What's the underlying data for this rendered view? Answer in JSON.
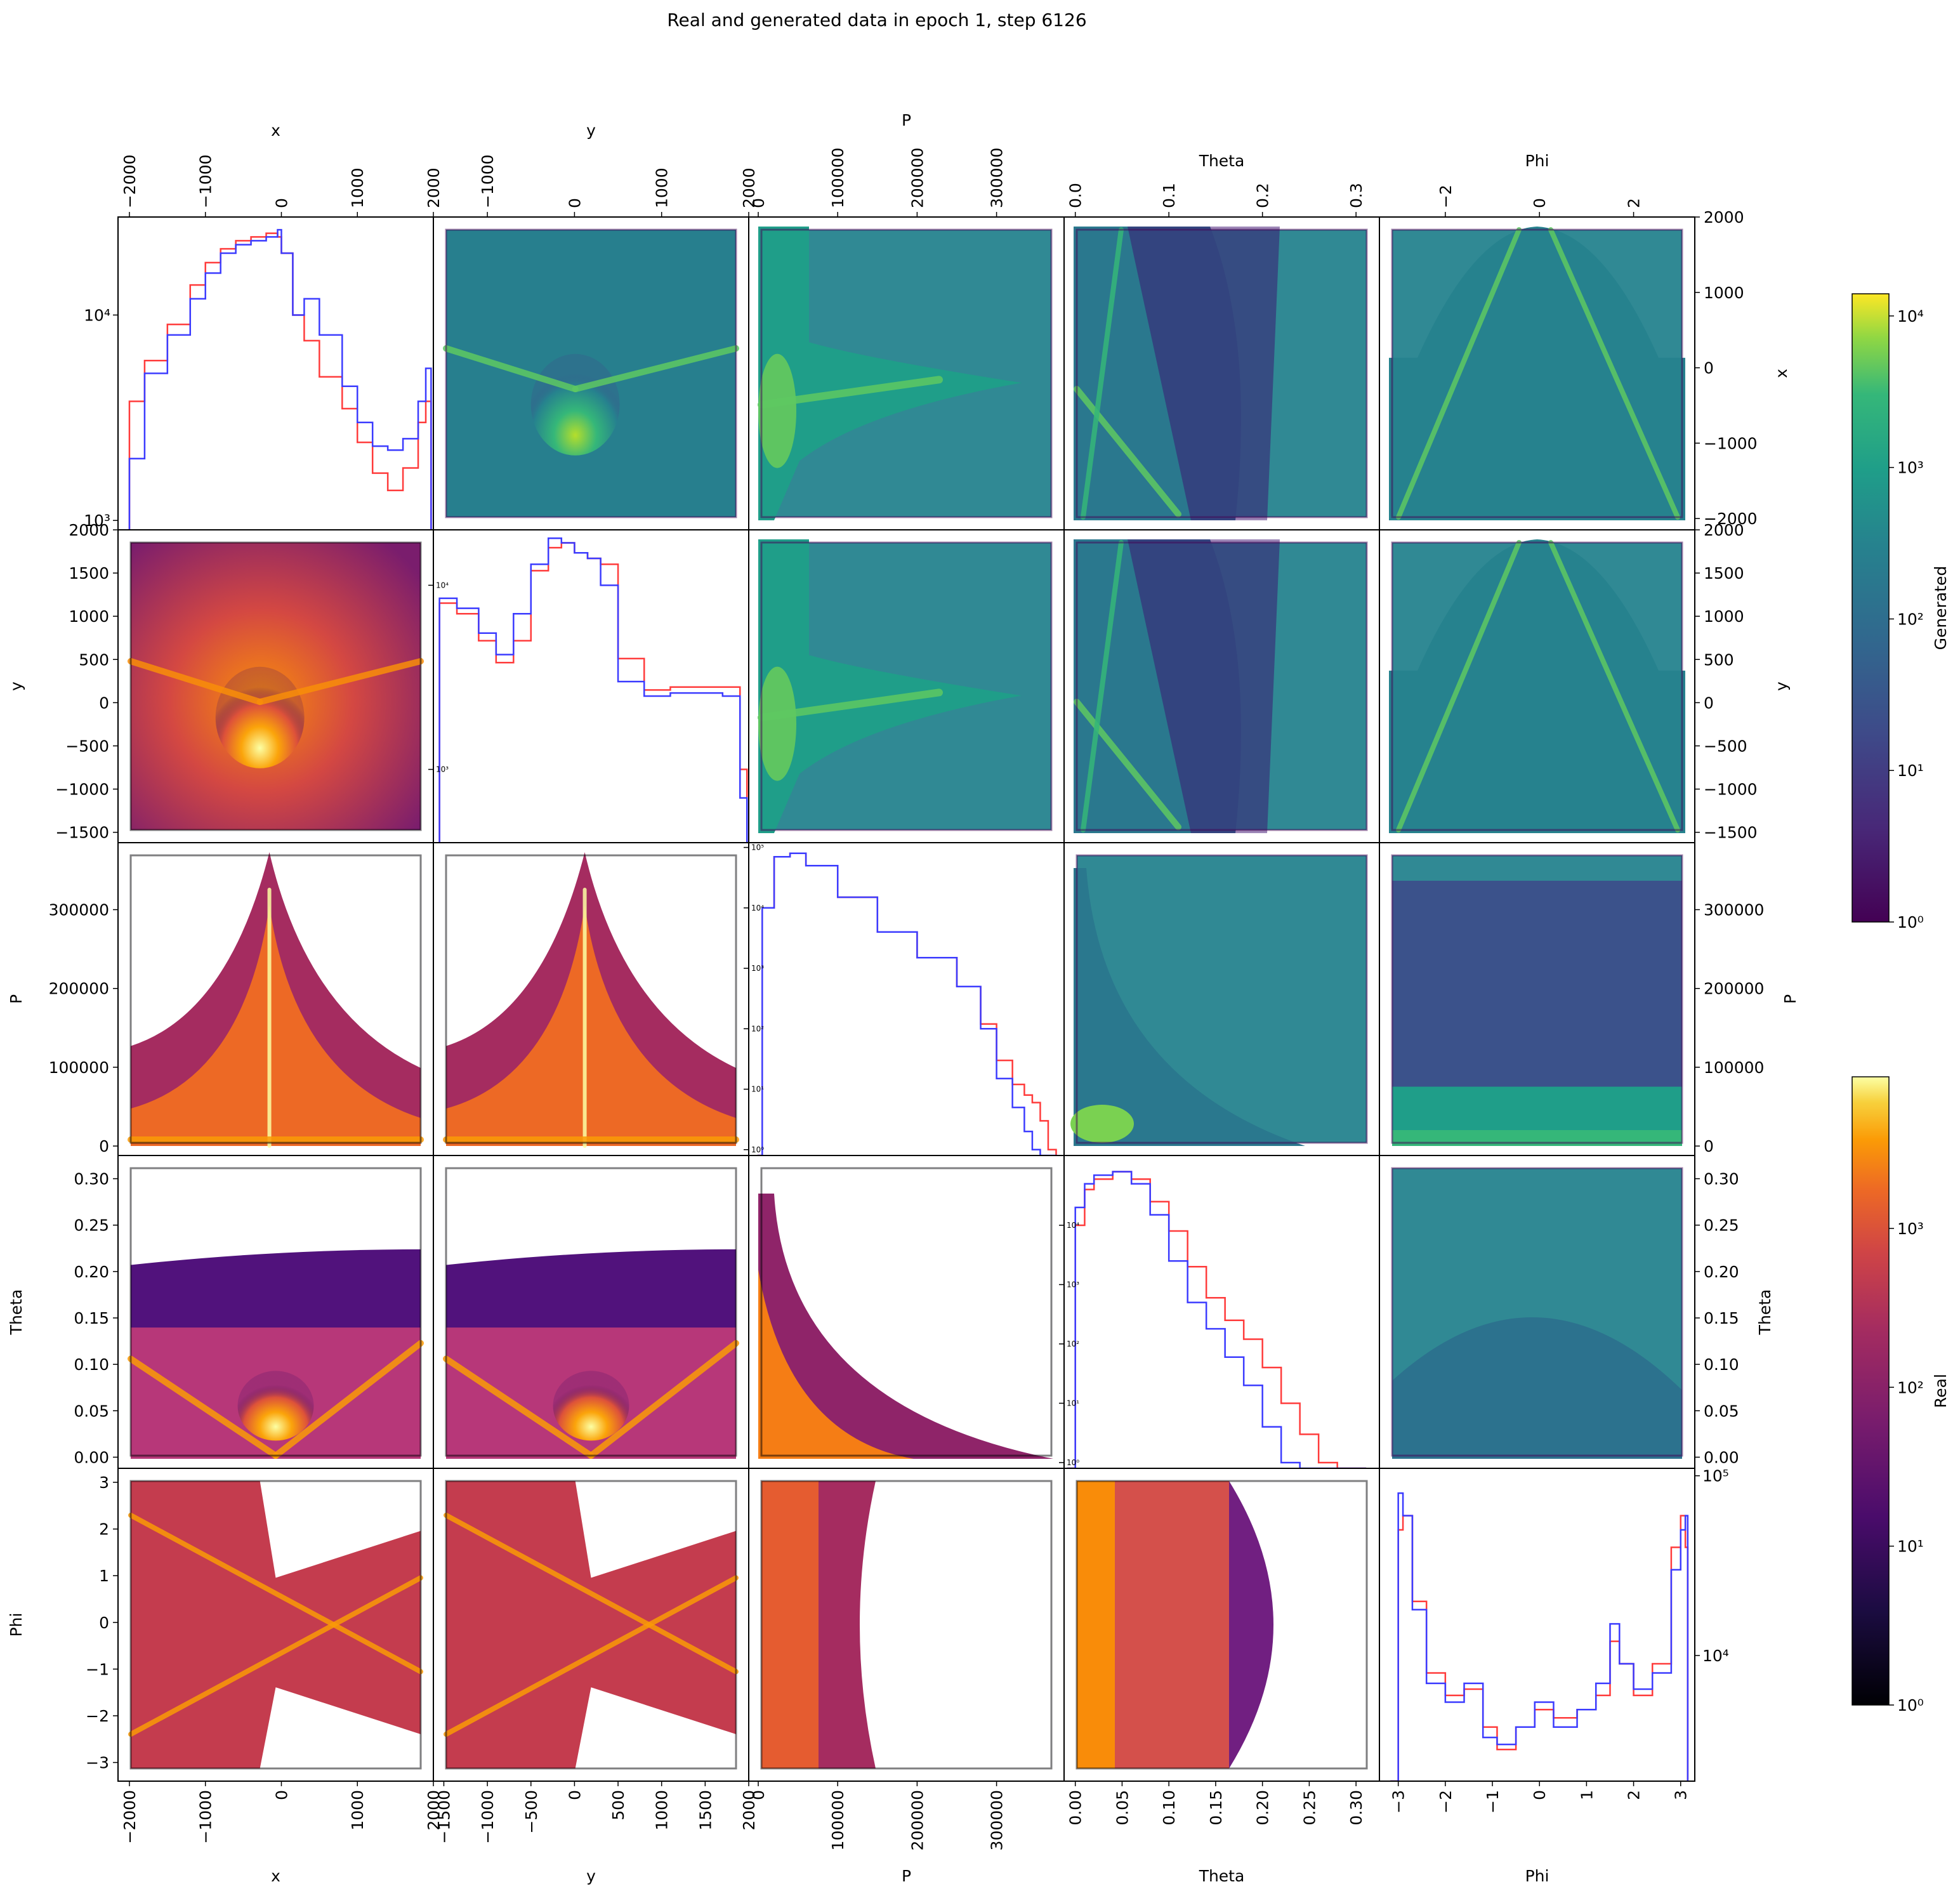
{
  "figure": {
    "title": "Real and generated data in epoch 1, step 6126"
  },
  "colors": {
    "real_line": "#ff3b3b",
    "generated_line": "#3b3bff",
    "frame": "#000000",
    "background": "#ffffff"
  },
  "chart_data": {
    "type": "pairplot",
    "variables": [
      "x",
      "y",
      "P",
      "Theta",
      "Phi"
    ],
    "layout": "5x5 grid; diagonal = 1D histograms (log y) of Real (red) vs Generated (blue); upper triangle = 2D histograms of Generated (viridis, log color); lower triangle = 2D histograms of Real (inferno, log color)",
    "upper_triangle": "Generated",
    "lower_triangle": "Real",
    "ranges": {
      "x": [
        -2150,
        2000
      ],
      "y": [
        -1620,
        2000
      ],
      "P": [
        -12000,
        385000
      ],
      "Theta": [
        -0.012,
        0.325
      ],
      "Phi": [
        -3.4,
        3.3
      ]
    },
    "ticks": {
      "x": {
        "values": [
          -2000,
          -1000,
          0,
          1000,
          2000
        ],
        "labels": [
          "−2000",
          "−1000",
          "0",
          "1000",
          "2000"
        ]
      },
      "y": {
        "values": [
          -1500,
          -1000,
          -500,
          0,
          500,
          1000,
          1500,
          2000
        ],
        "labels": [
          "−1500",
          "−1000",
          "−500",
          "0",
          "500",
          "1000",
          "1500",
          "2000"
        ]
      },
      "y_top": {
        "values": [
          -1000,
          0,
          1000,
          2000
        ],
        "labels": [
          "−1000",
          "0",
          "1000",
          "2000"
        ]
      },
      "P": {
        "values": [
          0,
          100000,
          200000,
          300000
        ],
        "labels": [
          "0",
          "100000",
          "200000",
          "300000"
        ]
      },
      "Theta": {
        "values": [
          0,
          0.05,
          0.1,
          0.15,
          0.2,
          0.25,
          0.3
        ],
        "labels": [
          "0.00",
          "0.05",
          "0.10",
          "0.15",
          "0.20",
          "0.25",
          "0.30"
        ]
      },
      "Theta_top": {
        "values": [
          0,
          0.1,
          0.2,
          0.3
        ],
        "labels": [
          "0.0",
          "0.1",
          "0.2",
          "0.3"
        ]
      },
      "Phi": {
        "values": [
          -3,
          -2,
          -1,
          0,
          1,
          2,
          3
        ],
        "labels": [
          "−3",
          "−2",
          "−1",
          "0",
          "1",
          "2",
          "3"
        ]
      },
      "Phi_top": {
        "values": [
          -2,
          0,
          2
        ],
        "labels": [
          "−2",
          "0",
          "2"
        ]
      }
    },
    "colorbars": [
      {
        "label": "Generated",
        "colormap": "viridis",
        "scale": "log",
        "range": [
          1,
          14000
        ],
        "ticks": [
          1,
          10,
          100,
          1000,
          10000
        ],
        "tick_labels": [
          "10⁰",
          "10¹",
          "10²",
          "10³",
          "10⁴"
        ]
      },
      {
        "label": "Real",
        "colormap": "inferno",
        "scale": "log",
        "range": [
          1,
          9000
        ],
        "ticks": [
          1,
          10,
          100,
          1000
        ],
        "tick_labels": [
          "10⁰",
          "10¹",
          "10²",
          "10³"
        ]
      }
    ],
    "diagonal": [
      {
        "var": "x",
        "ylim_log": [
          900,
          30000
        ],
        "yticks": [
          1000,
          10000
        ],
        "ytick_labels": [
          "10³",
          "10⁴"
        ],
        "ytick_side": "left",
        "x": [
          -2000,
          -1800,
          -1500,
          -1200,
          -1000,
          -800,
          -600,
          -400,
          -200,
          -50,
          0,
          150,
          300,
          500,
          800,
          1000,
          1200,
          1400,
          1600,
          1800,
          1900,
          1970
        ],
        "series": [
          {
            "name": "Real",
            "values": [
              3800,
              6000,
              9000,
              14000,
              18000,
              21000,
              23000,
              24000,
              25000,
              24000,
              20000,
              10000,
              7500,
              5000,
              3500,
              2400,
              1700,
              1400,
              1800,
              3000,
              3800,
              3800
            ]
          },
          {
            "name": "Generated",
            "values": [
              2000,
              5200,
              8000,
              12000,
              16000,
              20000,
              22000,
              23000,
              24000,
              26000,
              20000,
              10000,
              12000,
              8000,
              4500,
              3000,
              2300,
              2200,
              2500,
              3800,
              5500,
              4800
            ]
          }
        ]
      },
      {
        "var": "y",
        "ylim_log": [
          400,
          20000
        ],
        "yticks": [
          1000,
          10000
        ],
        "ytick_labels": [
          "10³",
          "10⁴"
        ],
        "ytick_side": "left",
        "x": [
          -1550,
          -1350,
          -1100,
          -900,
          -700,
          -500,
          -300,
          -150,
          0,
          150,
          300,
          500,
          800,
          1100,
          1400,
          1700,
          1900,
          1980
        ],
        "series": [
          {
            "name": "Real",
            "values": [
              8000,
              7000,
              5000,
              3800,
              5000,
              12000,
              16000,
              17000,
              15000,
              14000,
              13000,
              4000,
              2700,
              2800,
              2800,
              2800,
              1000,
              400
            ]
          },
          {
            "name": "Generated",
            "values": [
              8500,
              7500,
              5500,
              4200,
              7000,
              13000,
              18000,
              17000,
              15000,
              14000,
              10000,
              3000,
              2500,
              2600,
              2600,
              2500,
              700,
              400
            ]
          }
        ]
      },
      {
        "var": "P",
        "ylim_log": [
          0.8,
          120000
        ],
        "yticks": [
          1,
          10,
          100,
          1000,
          10000,
          100000
        ],
        "ytick_labels": [
          "10⁰",
          "10¹",
          "10²",
          "10³",
          "10⁴",
          "10⁵"
        ],
        "ytick_side": "left",
        "x": [
          0,
          5000,
          20000,
          40000,
          60000,
          100000,
          150000,
          200000,
          250000,
          280000,
          300000,
          320000,
          335000,
          345000,
          355000,
          365000,
          375000
        ],
        "series": [
          {
            "name": "Real",
            "values": [
              0.8,
              10000,
              70000,
              80000,
              50000,
              15000,
              4000,
              1500,
              500,
              120,
              30,
              12,
              8,
              6,
              3,
              1,
              0.8
            ]
          },
          {
            "name": "Generated",
            "values": [
              0.8,
              10000,
              70000,
              80000,
              50000,
              15000,
              4000,
              1500,
              500,
              100,
              15,
              5,
              2,
              1,
              0.8,
              0.8,
              0.8
            ]
          }
        ]
      },
      {
        "var": "Theta",
        "ylim_log": [
          0.8,
          150000
        ],
        "yticks": [
          1,
          10,
          100,
          1000,
          10000
        ],
        "ytick_labels": [
          "10⁰",
          "10¹",
          "10²",
          "10³",
          "10⁴"
        ],
        "ytick_side": "left",
        "x": [
          -0.008,
          0.0,
          0.01,
          0.02,
          0.04,
          0.06,
          0.08,
          0.1,
          0.12,
          0.14,
          0.16,
          0.18,
          0.2,
          0.22,
          0.24,
          0.26,
          0.28,
          0.3,
          0.31
        ],
        "series": [
          {
            "name": "Real",
            "values": [
              0.8,
              10000,
              40000,
              60000,
              80000,
              60000,
              25000,
              8000,
              2000,
              600,
              250,
              120,
              40,
              10,
              3,
              1,
              0.8,
              0.8,
              0.8
            ]
          },
          {
            "name": "Generated",
            "values": [
              0.8,
              20000,
              50000,
              70000,
              80000,
              50000,
              15000,
              2500,
              500,
              180,
              60,
              20,
              4,
              1,
              0.8,
              0.8,
              0.8,
              0.8,
              0.8
            ]
          }
        ]
      },
      {
        "var": "Phi",
        "ylim_log": [
          2000,
          110000
        ],
        "yticks": [
          10000,
          100000
        ],
        "ytick_labels": [
          "10⁴",
          "10⁵"
        ],
        "ytick_side": "right",
        "x": [
          -3.15,
          -3.0,
          -2.9,
          -2.7,
          -2.4,
          -2.0,
          -1.6,
          -1.2,
          -0.9,
          -0.5,
          -0.1,
          0.3,
          0.8,
          1.2,
          1.5,
          1.7,
          2.0,
          2.4,
          2.8,
          3.0,
          3.1,
          3.15
        ],
        "series": [
          {
            "name": "Real",
            "values": [
              2000,
              50000,
              60000,
              20000,
              8000,
              6000,
              6500,
              4000,
              3000,
              4000,
              5000,
              4500,
              5000,
              6000,
              12000,
              9000,
              6000,
              9000,
              40000,
              60000,
              40000,
              2000
            ]
          },
          {
            "name": "Generated",
            "values": [
              2000,
              80000,
              60000,
              18000,
              7000,
              5500,
              7000,
              3500,
              3200,
              4000,
              5500,
              4000,
              5000,
              7000,
              15000,
              9000,
              6500,
              8000,
              30000,
              50000,
              60000,
              2000
            ]
          }
        ]
      }
    ]
  }
}
